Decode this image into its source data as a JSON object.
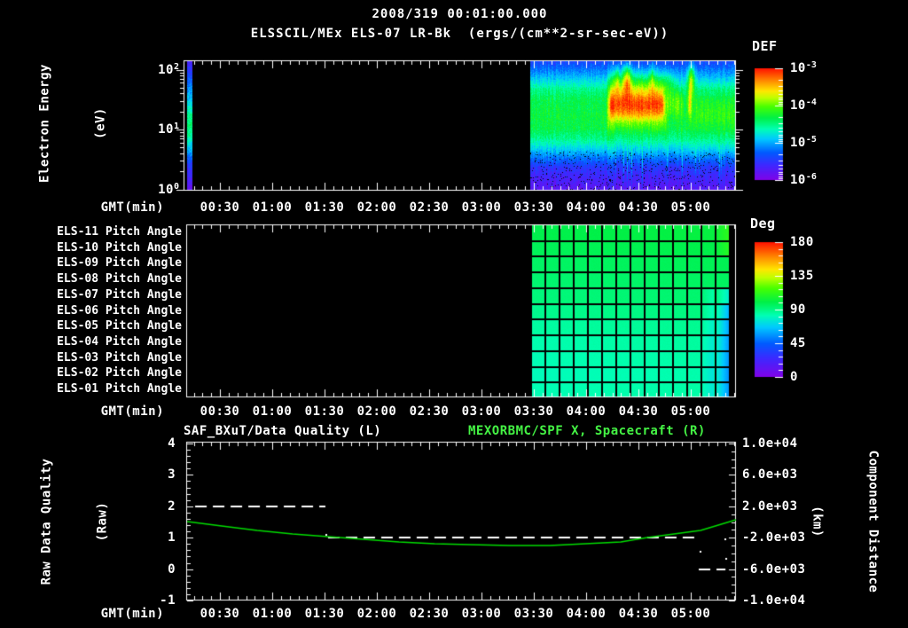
{
  "header": {
    "timestamp": "2008/319 00:01:00.000",
    "title": "ELSSCIL/MEx ELS-07 LR-Bk  (ergs/(cm**2-sr-sec-eV))"
  },
  "colors": {
    "background": "#000000",
    "axis_text": "#ffffff",
    "title_green": "#44f244",
    "curve_green": "#00dc00"
  },
  "time_axis": {
    "label": "GMT(min)",
    "tick_labels": [
      "00:30",
      "01:00",
      "01:30",
      "02:00",
      "02:30",
      "03:00",
      "03:30",
      "04:00",
      "04:30",
      "05:00"
    ],
    "tick_minutes": [
      30,
      60,
      90,
      120,
      150,
      180,
      210,
      240,
      270,
      300
    ],
    "start_minute": 10.7,
    "end_minute": 325.9
  },
  "spectrogram_panel": {
    "ylabel_line1": "Electron Energy",
    "ylabel_line2": "(eV)",
    "ytick_base": "10",
    "ytick_exponents": [
      "2",
      "1",
      "0"
    ],
    "colorbar_title": "DEF",
    "colorbar_tick_exponents": [
      "-3",
      "-4",
      "-5",
      "-6"
    ]
  },
  "pitch_panel": {
    "row_labels": [
      "ELS-11 Pitch Angle",
      "ELS-10 Pitch Angle",
      "ELS-09 Pitch Angle",
      "ELS-08 Pitch Angle",
      "ELS-07 Pitch Angle",
      "ELS-06 Pitch Angle",
      "ELS-05 Pitch Angle",
      "ELS-04 Pitch Angle",
      "ELS-03 Pitch Angle",
      "ELS-02 Pitch Angle",
      "ELS-01 Pitch Angle"
    ],
    "colorbar_title": "Deg",
    "colorbar_ticks": [
      "180",
      "135",
      "90",
      "45",
      "0"
    ]
  },
  "quality_panel": {
    "left_title": "SAF_BXuT/Data Quality (L)",
    "right_title": "MEXORBMC/SPF X, Spacecraft (R)",
    "ylabel_line1": "Raw Data Quality",
    "ylabel_line2": "(Raw)",
    "ytick_labels": [
      "4",
      "3",
      "2",
      "1",
      "0",
      "-1"
    ],
    "y2label_line1": "Component Distance",
    "y2label_line2": "(km)",
    "y2tick_labels": [
      "1.0e+04",
      "6.0e+03",
      "2.0e+03",
      "-2.0e+03",
      "-6.0e+03",
      "-1.0e+04"
    ]
  },
  "chart_data": [
    {
      "type": "heatmap",
      "name": "electron-energy-spectrogram",
      "title": "ELSSCIL/MEx ELS-07 LR-Bk",
      "units": "ergs/(cm**2-sr-sec-eV)",
      "xlabel": "GMT(min)",
      "ylabel": "Electron Energy (eV)",
      "y_scale": "log",
      "ylim_ev": [
        1,
        143
      ],
      "log10_flux_range": [
        -6.6,
        -2.6
      ],
      "colorbar_decades": [
        -3,
        -4,
        -5,
        -6
      ],
      "data_segments_minutes": [
        [
          11.2,
          13.8
        ],
        [
          208,
          325.9
        ]
      ],
      "energy_profile_log10flux": [
        [
          0,
          -5.8
        ],
        [
          0.05,
          -5.55
        ],
        [
          0.1,
          -5.3
        ],
        [
          0.16,
          -4.95
        ],
        [
          0.22,
          -4.6
        ],
        [
          0.3,
          -4.38
        ],
        [
          0.42,
          -4.3
        ],
        [
          0.52,
          -4.35
        ],
        [
          0.6,
          -4.6
        ],
        [
          0.68,
          -5.05
        ],
        [
          0.75,
          -5.5
        ],
        [
          0.82,
          -5.9
        ],
        [
          0.9,
          -6.1
        ],
        [
          1,
          -6.3
        ]
      ],
      "stripe_profile_log10flux": [
        [
          0,
          -6.2
        ],
        [
          0.15,
          -5.6
        ],
        [
          0.3,
          -5.1
        ],
        [
          0.4,
          -4.7
        ],
        [
          0.45,
          -4.55
        ],
        [
          0.55,
          -4.6
        ],
        [
          0.65,
          -5.0
        ],
        [
          0.8,
          -5.9
        ],
        [
          1,
          -6.35
        ]
      ],
      "hot_region": {
        "x0_frac": 0.375,
        "x1_frac": 0.655,
        "center_yfrac": 0.34,
        "width_yfrac": 0.13,
        "amp": 1.55
      },
      "plumes": [
        {
          "x_frac": 0.468,
          "sigma": 0.01,
          "amp": 1.25
        },
        {
          "x_frac": 0.78,
          "sigma": 0.008,
          "amp": 1.35
        },
        {
          "x_frac": 0.42,
          "sigma": 0.006,
          "amp": 0.7
        },
        {
          "x_frac": 0.59,
          "sigma": 0.006,
          "amp": 0.6
        }
      ],
      "post_streaks": [
        {
          "x0_frac": 0.66,
          "x1_frac": 0.745,
          "amp": 0.55
        },
        {
          "x_frac": 0.773,
          "sigma": 0.01,
          "amp": 0.95
        }
      ],
      "tail_amp": 0.3,
      "colormap_stops": [
        [
          0,
          [
            130,
            0,
            230
          ]
        ],
        [
          0.14,
          [
            60,
            40,
            255
          ]
        ],
        [
          0.25,
          [
            0,
            90,
            255
          ]
        ],
        [
          0.37,
          [
            0,
            200,
            255
          ]
        ],
        [
          0.46,
          [
            0,
            255,
            180
          ]
        ],
        [
          0.5,
          [
            0,
            249,
            132
          ]
        ],
        [
          0.56,
          [
            0,
            240,
            70
          ]
        ],
        [
          0.66,
          [
            70,
            255,
            0
          ]
        ],
        [
          0.74,
          [
            190,
            255,
            0
          ]
        ],
        [
          0.8,
          [
            255,
            230,
            0
          ]
        ],
        [
          0.88,
          [
            255,
            150,
            0
          ]
        ],
        [
          1,
          [
            255,
            20,
            0
          ]
        ]
      ]
    },
    {
      "type": "heatmap",
      "name": "pitch-angle-rows",
      "rows": [
        "ELS-11",
        "ELS-10",
        "ELS-09",
        "ELS-08",
        "ELS-07",
        "ELS-06",
        "ELS-05",
        "ELS-04",
        "ELS-03",
        "ELS-02",
        "ELS-01"
      ],
      "units": "Deg",
      "deg_range": [
        0,
        180
      ],
      "data_minutes": [
        208,
        321.9
      ],
      "row_mean_deg": [
        101,
        99,
        97,
        95,
        93,
        90,
        87,
        85,
        84,
        83,
        84
      ],
      "right_edge_deg_drop": 30,
      "top_rows_right_edge_deg_rise": 10
    },
    {
      "type": "line",
      "name": "data-quality-and-distance",
      "x_minutes_range": [
        10.7,
        325.9
      ],
      "left_axis": {
        "label": "Raw Data Quality (Raw)",
        "range": [
          -1,
          4
        ]
      },
      "right_axis": {
        "label": "Component Distance (km)",
        "range": [
          -10000,
          10000
        ]
      },
      "quality_segments": [
        {
          "value": 2,
          "from_minute": 15.8,
          "to_minute": 90.5
        },
        {
          "value": 1,
          "from_minute": 92,
          "to_minute": 304.1
        },
        {
          "value": 0,
          "from_minute": 304.6,
          "to_minute": 319.9
        }
      ],
      "quality_dots": [
        [
          91,
          1.09
        ],
        [
          305.6,
          0.55
        ],
        [
          319.9,
          0.95
        ],
        [
          320.4,
          0.33
        ]
      ],
      "distance_series_min_km": [
        [
          11.2,
          56
        ],
        [
          31,
          -509
        ],
        [
          51.4,
          -1074
        ],
        [
          71.7,
          -1525
        ],
        [
          92,
          -1864
        ],
        [
          112.4,
          -2203
        ],
        [
          132.7,
          -2542
        ],
        [
          153.1,
          -2768
        ],
        [
          173.4,
          -2881
        ],
        [
          196.3,
          -2994
        ],
        [
          219.2,
          -2994
        ],
        [
          239.5,
          -2768
        ],
        [
          259.9,
          -2542
        ],
        [
          275.1,
          -1977
        ],
        [
          290.4,
          -1525
        ],
        [
          305.6,
          -1074
        ],
        [
          315.8,
          -395
        ],
        [
          325.9,
          282
        ]
      ]
    }
  ]
}
